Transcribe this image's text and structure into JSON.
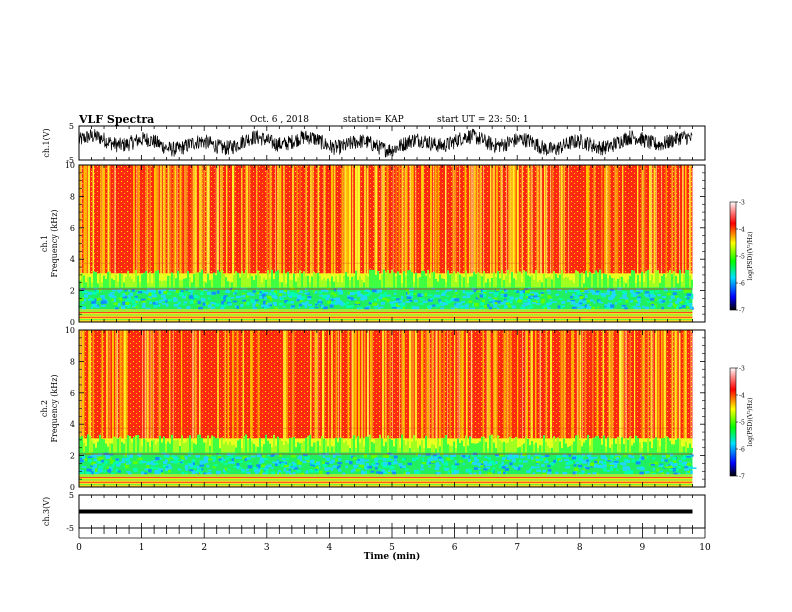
{
  "header": {
    "title": "VLF Spectra",
    "date": "Oct. 6  , 2018",
    "station": "station= KAP",
    "start": "start  UT  =   23: 50: 1"
  },
  "chart_data": [
    {
      "type": "line",
      "ylabel": "ch.1(V)",
      "ylim": [
        -5,
        5
      ],
      "yticks": [
        "5",
        "-5"
      ],
      "description_mode": "dense waveform around 0 V"
    },
    {
      "type": "heatmap",
      "ylabel": "ch.1\nFrequency  (kHz)",
      "ylabel_line1": "ch.1",
      "ylabel_line2": "Frequency  (kHz)",
      "ylim": [
        0,
        10
      ],
      "yticks": [
        "0",
        "2",
        "4",
        "6",
        "8",
        "10"
      ],
      "colorbar": {
        "label": "log(PSD)(V²/Hz)",
        "range": [
          -7,
          -3
        ],
        "ticks": [
          "-3",
          "-4",
          "-5",
          "-6",
          "-7"
        ]
      }
    },
    {
      "type": "heatmap",
      "ylabel_line1": "ch.2",
      "ylabel_line2": "Frequency  (kHz)",
      "ylim": [
        0,
        10
      ],
      "yticks": [
        "0",
        "2",
        "4",
        "6",
        "8",
        "10"
      ],
      "colorbar": {
        "label": "log(PSD)(V²/Hz)",
        "range": [
          -7,
          -3
        ],
        "ticks": [
          "-3",
          "-4",
          "-5",
          "-6",
          "-7"
        ]
      }
    },
    {
      "type": "line",
      "ylabel": "ch.3(V)",
      "ylim": [
        -5,
        5
      ],
      "yticks": [
        "5",
        "-5"
      ],
      "constant_value": 0
    }
  ],
  "xaxis": {
    "label": "Time  (min)",
    "xlim": [
      0,
      10
    ],
    "ticks": [
      "0",
      "1",
      "2",
      "3",
      "4",
      "5",
      "6",
      "7",
      "8",
      "9",
      "10"
    ],
    "data_end": 9.8
  }
}
